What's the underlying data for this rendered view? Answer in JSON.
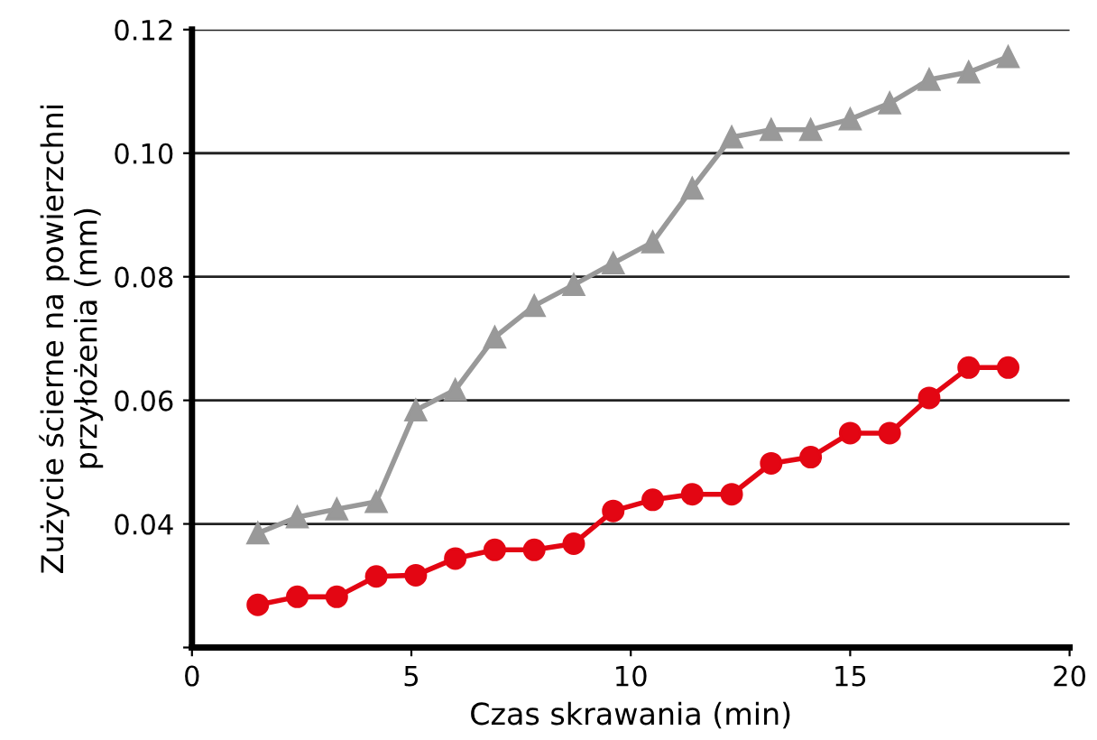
{
  "chart_data": {
    "type": "line",
    "xlabel": "Czas skrawania (min)",
    "ylabel": "Zużycie ścierne na powierzchni\nprzyłożenia (mm)",
    "xlim": [
      0,
      20
    ],
    "xticks": [
      0,
      5,
      10,
      15,
      20
    ],
    "ylim": [
      0.02,
      0.12
    ],
    "yticks": [
      {
        "value": 0.02,
        "label": null
      },
      {
        "value": 0.04,
        "label": "0.04"
      },
      {
        "value": 0.06,
        "label": "0.06"
      },
      {
        "value": 0.08,
        "label": "0.08"
      },
      {
        "value": 0.1,
        "label": "0.10"
      },
      {
        "value": 0.12,
        "label": "0.12"
      }
    ],
    "grid": "y",
    "legend": false,
    "series": [
      {
        "color": "#999999",
        "marker": "triangle",
        "x": [
          1.5,
          2.4,
          3.3,
          4.2,
          5.1,
          6.0,
          6.9,
          7.8,
          8.7,
          9.6,
          10.5,
          11.4,
          12.3,
          13.2,
          14.1,
          15.0,
          15.9,
          16.8,
          17.7,
          18.6
        ],
        "values": [
          0.0385,
          0.0411,
          0.0424,
          0.0436,
          0.0584,
          0.0617,
          0.0702,
          0.0753,
          0.0787,
          0.0822,
          0.0856,
          0.0943,
          0.1026,
          0.1038,
          0.1038,
          0.1055,
          0.1081,
          0.1119,
          0.1131,
          0.1156
        ]
      },
      {
        "color": "#e30613",
        "marker": "circle",
        "x": [
          1.5,
          2.4,
          3.3,
          4.2,
          5.1,
          6.0,
          6.9,
          7.8,
          8.7,
          9.6,
          10.5,
          11.4,
          12.3,
          13.2,
          14.1,
          15.0,
          15.9,
          16.8,
          17.7,
          18.6
        ],
        "values": [
          0.0269,
          0.0282,
          0.0282,
          0.0315,
          0.0317,
          0.0344,
          0.0358,
          0.0358,
          0.0368,
          0.0421,
          0.0439,
          0.0448,
          0.0448,
          0.0498,
          0.0508,
          0.0547,
          0.0547,
          0.0604,
          0.0653,
          0.0653
        ]
      }
    ]
  }
}
